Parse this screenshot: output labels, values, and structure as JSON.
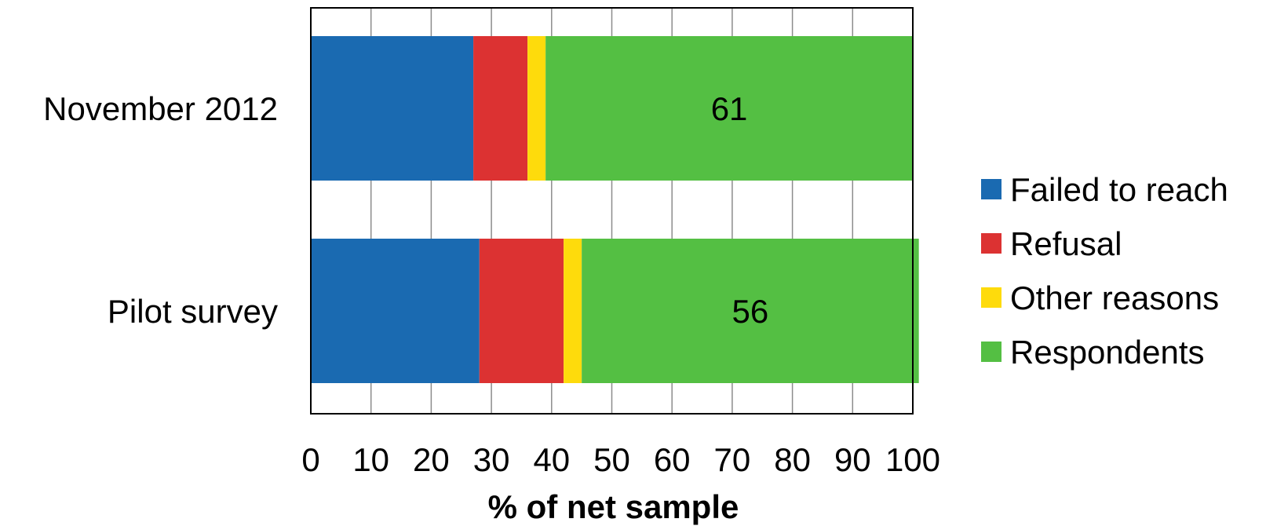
{
  "chart_data": {
    "type": "bar",
    "orientation": "horizontal",
    "stacked": true,
    "categories": [
      "November 2012",
      "Pilot survey"
    ],
    "series": [
      {
        "name": "Failed to reach",
        "values": [
          27,
          28
        ],
        "color": "#1a6ab1"
      },
      {
        "name": "Refusal",
        "values": [
          9,
          14
        ],
        "color": "#dc3232"
      },
      {
        "name": "Other reasons",
        "values": [
          3,
          3
        ],
        "color": "#fedb0c"
      },
      {
        "name": "Respondents",
        "values": [
          61,
          56
        ],
        "color": "#54bf43"
      }
    ],
    "data_labels": [
      {
        "category": "November 2012",
        "series": "Respondents",
        "text": "61"
      },
      {
        "category": "Pilot survey",
        "series": "Respondents",
        "text": "56"
      }
    ],
    "xlabel": "% of net sample",
    "ylabel": "",
    "xlim": [
      0,
      100
    ],
    "x_ticks": [
      "0",
      "10",
      "20",
      "30",
      "40",
      "50",
      "60",
      "70",
      "80",
      "90",
      "100"
    ],
    "grid": true,
    "legend_position": "right"
  }
}
